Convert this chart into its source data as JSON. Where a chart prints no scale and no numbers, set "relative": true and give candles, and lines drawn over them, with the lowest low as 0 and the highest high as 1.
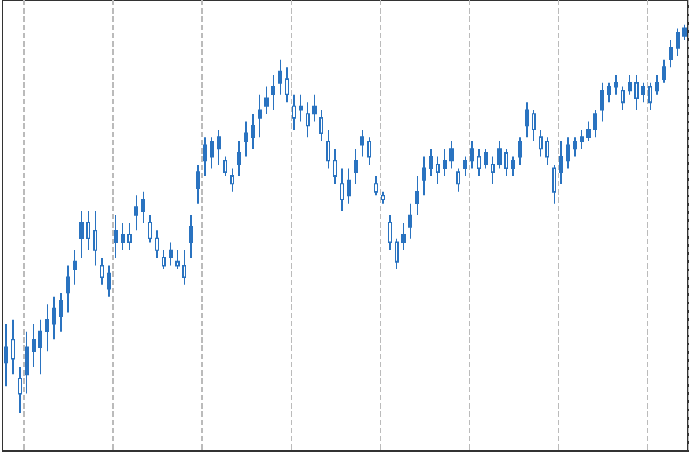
{
  "chart_data": {
    "type": "candlestick",
    "relative": true,
    "grid": "x",
    "color": "#2a73c0",
    "categories": [
      null,
      null,
      null,
      null,
      null,
      null,
      null,
      null,
      null,
      null,
      null,
      null,
      null,
      null,
      null,
      null,
      null,
      null,
      null,
      null,
      null,
      null,
      null,
      null,
      null,
      null,
      null,
      null,
      null,
      null,
      null,
      null,
      null,
      null,
      null,
      null,
      null,
      null,
      null,
      null,
      null,
      null,
      null,
      null,
      null,
      null,
      null,
      null,
      null,
      null,
      null,
      null,
      null,
      null,
      null,
      null,
      null,
      null,
      null,
      null,
      null,
      null,
      null,
      null,
      null,
      null,
      null,
      null,
      null,
      null,
      null,
      null,
      null,
      null,
      null,
      null,
      null,
      null,
      null,
      null,
      null,
      null,
      null,
      null,
      null,
      null,
      null,
      null,
      null,
      null,
      null,
      null,
      null,
      null,
      null,
      null,
      null,
      null,
      null,
      null
    ],
    "ohlc": [
      [
        0.13,
        0.23,
        0.07,
        0.17
      ],
      [
        0.19,
        0.24,
        0.1,
        0.14
      ],
      [
        0.09,
        0.12,
        0,
        0.05
      ],
      [
        0.1,
        0.21,
        0.05,
        0.17
      ],
      [
        0.16,
        0.23,
        0.12,
        0.19
      ],
      [
        0.17,
        0.24,
        0.1,
        0.21
      ],
      [
        0.21,
        0.28,
        0.16,
        0.24
      ],
      [
        0.23,
        0.3,
        0.19,
        0.27
      ],
      [
        0.25,
        0.31,
        0.21,
        0.29
      ],
      [
        0.31,
        0.38,
        0.26,
        0.35
      ],
      [
        0.37,
        0.42,
        0.33,
        0.39
      ],
      [
        0.45,
        0.52,
        0.4,
        0.49
      ],
      [
        0.49,
        0.52,
        0.42,
        0.45
      ],
      [
        0.47,
        0.52,
        0.38,
        0.42
      ],
      [
        0.38,
        0.4,
        0.33,
        0.35
      ],
      [
        0.32,
        0.38,
        0.3,
        0.36
      ],
      [
        0.44,
        0.51,
        0.4,
        0.47
      ],
      [
        0.44,
        0.49,
        0.42,
        0.46
      ],
      [
        0.46,
        0.49,
        0.42,
        0.44
      ],
      [
        0.51,
        0.56,
        0.47,
        0.53
      ],
      [
        0.52,
        0.57,
        0.49,
        0.55
      ],
      [
        0.49,
        0.51,
        0.44,
        0.45
      ],
      [
        0.45,
        0.47,
        0.4,
        0.42
      ],
      [
        0.4,
        0.42,
        0.37,
        0.38
      ],
      [
        0.4,
        0.44,
        0.38,
        0.42
      ],
      [
        0.39,
        0.42,
        0.37,
        0.38
      ],
      [
        0.38,
        0.42,
        0.33,
        0.35
      ],
      [
        0.44,
        0.51,
        0.4,
        0.48
      ],
      [
        0.58,
        0.64,
        0.54,
        0.62
      ],
      [
        0.65,
        0.71,
        0.61,
        0.69
      ],
      [
        0.66,
        0.71,
        0.63,
        0.7
      ],
      [
        0.68,
        0.73,
        0.64,
        0.71
      ],
      [
        0.65,
        0.66,
        0.61,
        0.62
      ],
      [
        0.61,
        0.63,
        0.57,
        0.59
      ],
      [
        0.64,
        0.7,
        0.61,
        0.67
      ],
      [
        0.7,
        0.75,
        0.66,
        0.72
      ],
      [
        0.71,
        0.77,
        0.68,
        0.74
      ],
      [
        0.76,
        0.82,
        0.71,
        0.78
      ],
      [
        0.79,
        0.84,
        0.77,
        0.81
      ],
      [
        0.82,
        0.87,
        0.78,
        0.84
      ],
      [
        0.85,
        0.91,
        0.82,
        0.88
      ],
      [
        0.86,
        0.89,
        0.8,
        0.82
      ],
      [
        0.79,
        0.82,
        0.73,
        0.76
      ],
      [
        0.78,
        0.82,
        0.75,
        0.79
      ],
      [
        0.77,
        0.8,
        0.71,
        0.74
      ],
      [
        0.77,
        0.82,
        0.75,
        0.79
      ],
      [
        0.76,
        0.78,
        0.7,
        0.72
      ],
      [
        0.7,
        0.73,
        0.63,
        0.65
      ],
      [
        0.65,
        0.68,
        0.59,
        0.61
      ],
      [
        0.59,
        0.63,
        0.52,
        0.55
      ],
      [
        0.56,
        0.63,
        0.54,
        0.6
      ],
      [
        0.62,
        0.68,
        0.59,
        0.65
      ],
      [
        0.69,
        0.73,
        0.66,
        0.71
      ],
      [
        0.7,
        0.71,
        0.64,
        0.66
      ],
      [
        0.59,
        0.61,
        0.56,
        0.57
      ],
      [
        0.56,
        0.57,
        0.54,
        0.55
      ],
      [
        0.49,
        0.51,
        0.42,
        0.44
      ],
      [
        0.44,
        0.45,
        0.37,
        0.39
      ],
      [
        0.44,
        0.49,
        0.42,
        0.46
      ],
      [
        0.48,
        0.54,
        0.45,
        0.51
      ],
      [
        0.54,
        0.61,
        0.51,
        0.57
      ],
      [
        0.6,
        0.66,
        0.56,
        0.63
      ],
      [
        0.63,
        0.68,
        0.61,
        0.66
      ],
      [
        0.64,
        0.66,
        0.59,
        0.62
      ],
      [
        0.63,
        0.68,
        0.61,
        0.65
      ],
      [
        0.65,
        0.7,
        0.63,
        0.68
      ],
      [
        0.62,
        0.63,
        0.57,
        0.59
      ],
      [
        0.63,
        0.66,
        0.61,
        0.65
      ],
      [
        0.65,
        0.7,
        0.63,
        0.68
      ],
      [
        0.66,
        0.68,
        0.61,
        0.63
      ],
      [
        0.64,
        0.68,
        0.63,
        0.67
      ],
      [
        0.64,
        0.66,
        0.59,
        0.62
      ],
      [
        0.64,
        0.7,
        0.63,
        0.68
      ],
      [
        0.67,
        0.68,
        0.61,
        0.63
      ],
      [
        0.63,
        0.66,
        0.61,
        0.65
      ],
      [
        0.66,
        0.71,
        0.64,
        0.7
      ],
      [
        0.74,
        0.8,
        0.71,
        0.78
      ],
      [
        0.77,
        0.78,
        0.7,
        0.73
      ],
      [
        0.71,
        0.73,
        0.66,
        0.68
      ],
      [
        0.7,
        0.71,
        0.64,
        0.66
      ],
      [
        0.63,
        0.64,
        0.54,
        0.57
      ],
      [
        0.62,
        0.7,
        0.59,
        0.66
      ],
      [
        0.65,
        0.71,
        0.63,
        0.69
      ],
      [
        0.68,
        0.71,
        0.66,
        0.7
      ],
      [
        0.7,
        0.73,
        0.68,
        0.71
      ],
      [
        0.71,
        0.75,
        0.7,
        0.73
      ],
      [
        0.73,
        0.78,
        0.71,
        0.77
      ],
      [
        0.78,
        0.85,
        0.75,
        0.83
      ],
      [
        0.82,
        0.85,
        0.8,
        0.84
      ],
      [
        0.84,
        0.87,
        0.82,
        0.85
      ],
      [
        0.83,
        0.84,
        0.78,
        0.8
      ],
      [
        0.83,
        0.87,
        0.82,
        0.85
      ],
      [
        0.85,
        0.87,
        0.78,
        0.81
      ],
      [
        0.82,
        0.85,
        0.8,
        0.84
      ],
      [
        0.84,
        0.85,
        0.78,
        0.8
      ],
      [
        0.83,
        0.87,
        0.82,
        0.85
      ],
      [
        0.86,
        0.91,
        0.85,
        0.89
      ],
      [
        0.91,
        0.96,
        0.89,
        0.94
      ],
      [
        0.94,
        0.99,
        0.92,
        0.98
      ],
      [
        0.97,
        1,
        0.96,
        0.99
      ]
    ]
  }
}
